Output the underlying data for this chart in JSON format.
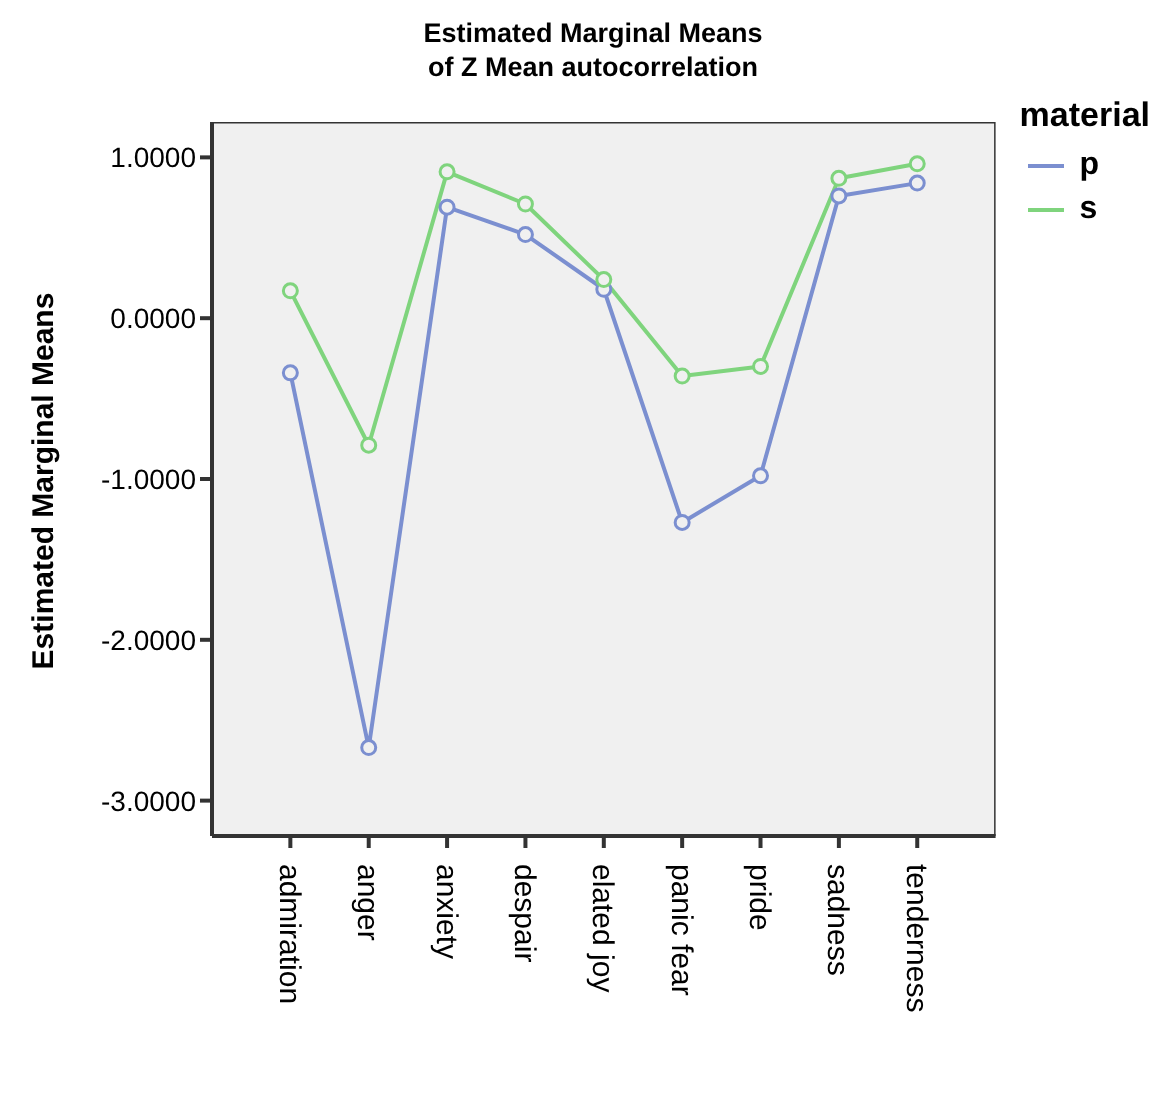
{
  "chart_data": {
    "type": "line",
    "title": "Estimated Marginal Means of Z Mean autocorrelation",
    "ylabel": "Estimated Marginal Means",
    "legend_title": "material",
    "categories": [
      "admiration",
      "anger",
      "anxiety",
      "despair",
      "elated joy",
      "panic fear",
      "pride",
      "sadness",
      "tenderness"
    ],
    "series": [
      {
        "name": "p",
        "color": "#7b8fd0",
        "values": [
          -0.34,
          -2.67,
          0.69,
          0.52,
          0.18,
          -1.27,
          -0.98,
          0.76,
          0.84
        ]
      },
      {
        "name": "s",
        "color": "#7fd47d",
        "values": [
          0.17,
          -0.79,
          0.91,
          0.71,
          0.24,
          -0.36,
          -0.3,
          0.87,
          0.96
        ]
      }
    ],
    "ylim": [
      -3.22,
      1.22
    ],
    "yticks": [
      {
        "value": -3,
        "label": "-3.0000"
      },
      {
        "value": -2,
        "label": "-2.0000"
      },
      {
        "value": -1,
        "label": "-1.0000"
      },
      {
        "value": 0,
        "label": "0.0000"
      },
      {
        "value": 1,
        "label": "1.0000"
      }
    ],
    "grid": false,
    "legend": "top right",
    "marker": "circle",
    "line_style": "solid"
  }
}
